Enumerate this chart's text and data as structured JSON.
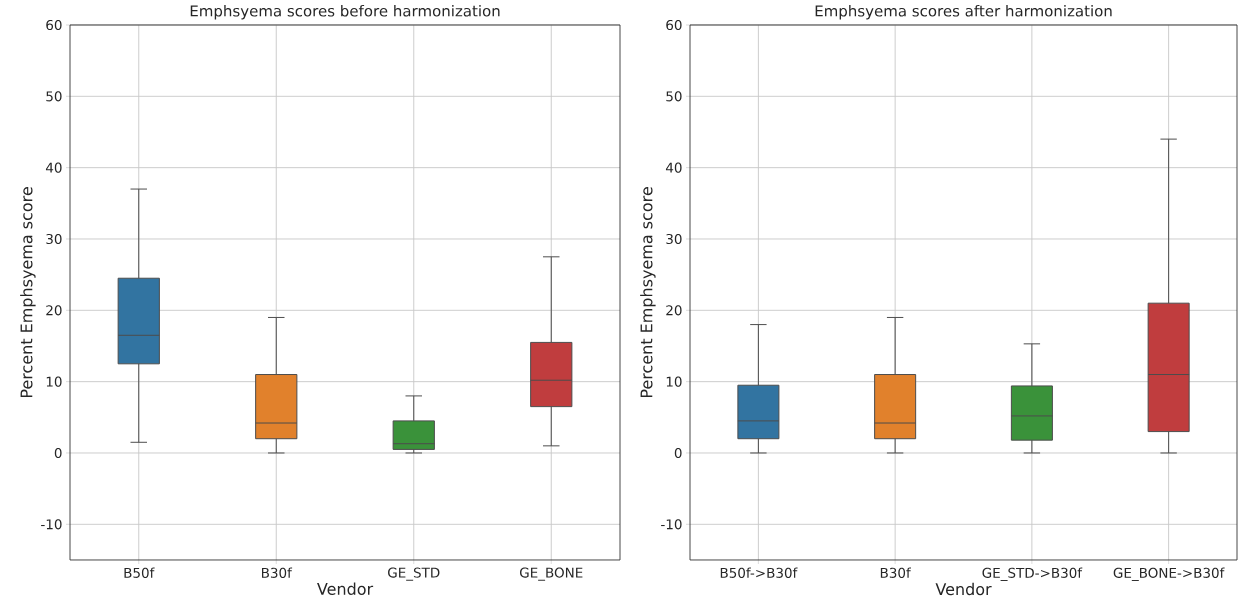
{
  "chart_data": [
    {
      "type": "box",
      "title": "Emphsyema scores before harmonization",
      "xlabel": "Vendor",
      "ylabel": "Percent Emphsyema score",
      "categories": [
        "B50f",
        "B30f",
        "GE_STD",
        "GE_BONE"
      ],
      "colors": [
        "#3274a1",
        "#e1812c",
        "#3a923a",
        "#c03d3e"
      ],
      "boxes": [
        {
          "low": 1.5,
          "q1": 12.5,
          "median": 16.5,
          "q3": 24.5,
          "high": 37
        },
        {
          "low": 0,
          "q1": 2,
          "median": 4.2,
          "q3": 11,
          "high": 19
        },
        {
          "low": 0,
          "q1": 0.5,
          "median": 1.3,
          "q3": 4.5,
          "high": 8
        },
        {
          "low": 1,
          "q1": 6.5,
          "median": 10.2,
          "q3": 15.5,
          "high": 27.5
        }
      ],
      "ylim": [
        -15,
        60
      ],
      "yticks": [
        -10,
        0,
        10,
        20,
        30,
        40,
        50,
        60
      ],
      "grid": true
    },
    {
      "type": "box",
      "title": "Emphsyema scores after harmonization",
      "xlabel": "Vendor",
      "ylabel": "Percent Emphsyema score",
      "categories": [
        "B50f->B30f",
        "B30f",
        "GE_STD->B30f",
        "GE_BONE->B30f"
      ],
      "colors": [
        "#3274a1",
        "#e1812c",
        "#3a923a",
        "#c03d3e"
      ],
      "boxes": [
        {
          "low": 0,
          "q1": 2,
          "median": 4.5,
          "q3": 9.5,
          "high": 18
        },
        {
          "low": 0,
          "q1": 2,
          "median": 4.2,
          "q3": 11,
          "high": 19
        },
        {
          "low": 0,
          "q1": 1.8,
          "median": 5.2,
          "q3": 9.4,
          "high": 15.3
        },
        {
          "low": 0,
          "q1": 3,
          "median": 11,
          "q3": 21,
          "high": 44
        }
      ],
      "ylim": [
        -15,
        60
      ],
      "yticks": [
        -10,
        0,
        10,
        20,
        30,
        40,
        50,
        60
      ],
      "grid": true
    }
  ]
}
